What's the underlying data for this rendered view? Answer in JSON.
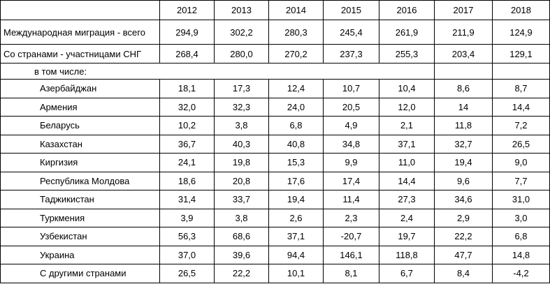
{
  "table": {
    "columns": [
      "2012",
      "2013",
      "2014",
      "2015",
      "2016",
      "2017",
      "2018"
    ],
    "rows_top": [
      {
        "label": "Международная миграция - всего",
        "values": [
          "294,9",
          "302,2",
          "280,3",
          "245,4",
          "261,9",
          "211,9",
          "124,9"
        ]
      },
      {
        "label": "Со странами - участницами СНГ",
        "values": [
          "268,4",
          "280,0",
          "270,2",
          "237,3",
          "255,3",
          "203,4",
          "129,1"
        ]
      }
    ],
    "subtitle": "в том числе:",
    "rows_detail": [
      {
        "label": "Азербайджан",
        "values": [
          "18,1",
          "17,3",
          "12,4",
          "10,7",
          "10,4",
          "8,6",
          "8,7"
        ]
      },
      {
        "label": "Армения",
        "values": [
          "32,0",
          "32,3",
          "24,0",
          "20,5",
          "12,0",
          "14",
          "14,4"
        ]
      },
      {
        "label": "Беларусь",
        "values": [
          "10,2",
          "3,8",
          "6,8",
          "4,9",
          "2,1",
          "11,8",
          "7,2"
        ]
      },
      {
        "label": "Казахстан",
        "values": [
          "36,7",
          "40,3",
          "40,8",
          "34,8",
          "37,1",
          "32,7",
          "26,5"
        ]
      },
      {
        "label": "Киргизия",
        "values": [
          "24,1",
          "19,8",
          "15,3",
          "9,9",
          "11,0",
          "19,4",
          "9,0"
        ]
      },
      {
        "label": "Республика Молдова",
        "values": [
          "18,6",
          "20,8",
          "17,6",
          "17,4",
          "14,4",
          "9,6",
          "7,7"
        ]
      },
      {
        "label": "Таджикистан",
        "values": [
          "31,4",
          "33,7",
          "19,4",
          "11,4",
          "27,3",
          "34,6",
          "31,0"
        ]
      },
      {
        "label": "Туркмения",
        "values": [
          "3,9",
          "3,8",
          "2,6",
          "2,3",
          "2,4",
          "2,9",
          "3,0"
        ]
      },
      {
        "label": "Узбекистан",
        "values": [
          "56,3",
          "68,6",
          "37,1",
          "-20,7",
          "19,7",
          "22,2",
          "6,8"
        ]
      },
      {
        "label": "Украина",
        "values": [
          "37,0",
          "39,6",
          "94,4",
          "146,1",
          "118,8",
          "47,7",
          "14,8"
        ]
      },
      {
        "label": "С другими странами",
        "values": [
          "26,5",
          "22,2",
          "10,1",
          "8,1",
          "6,7",
          "8,4",
          "-4,2"
        ]
      }
    ]
  }
}
